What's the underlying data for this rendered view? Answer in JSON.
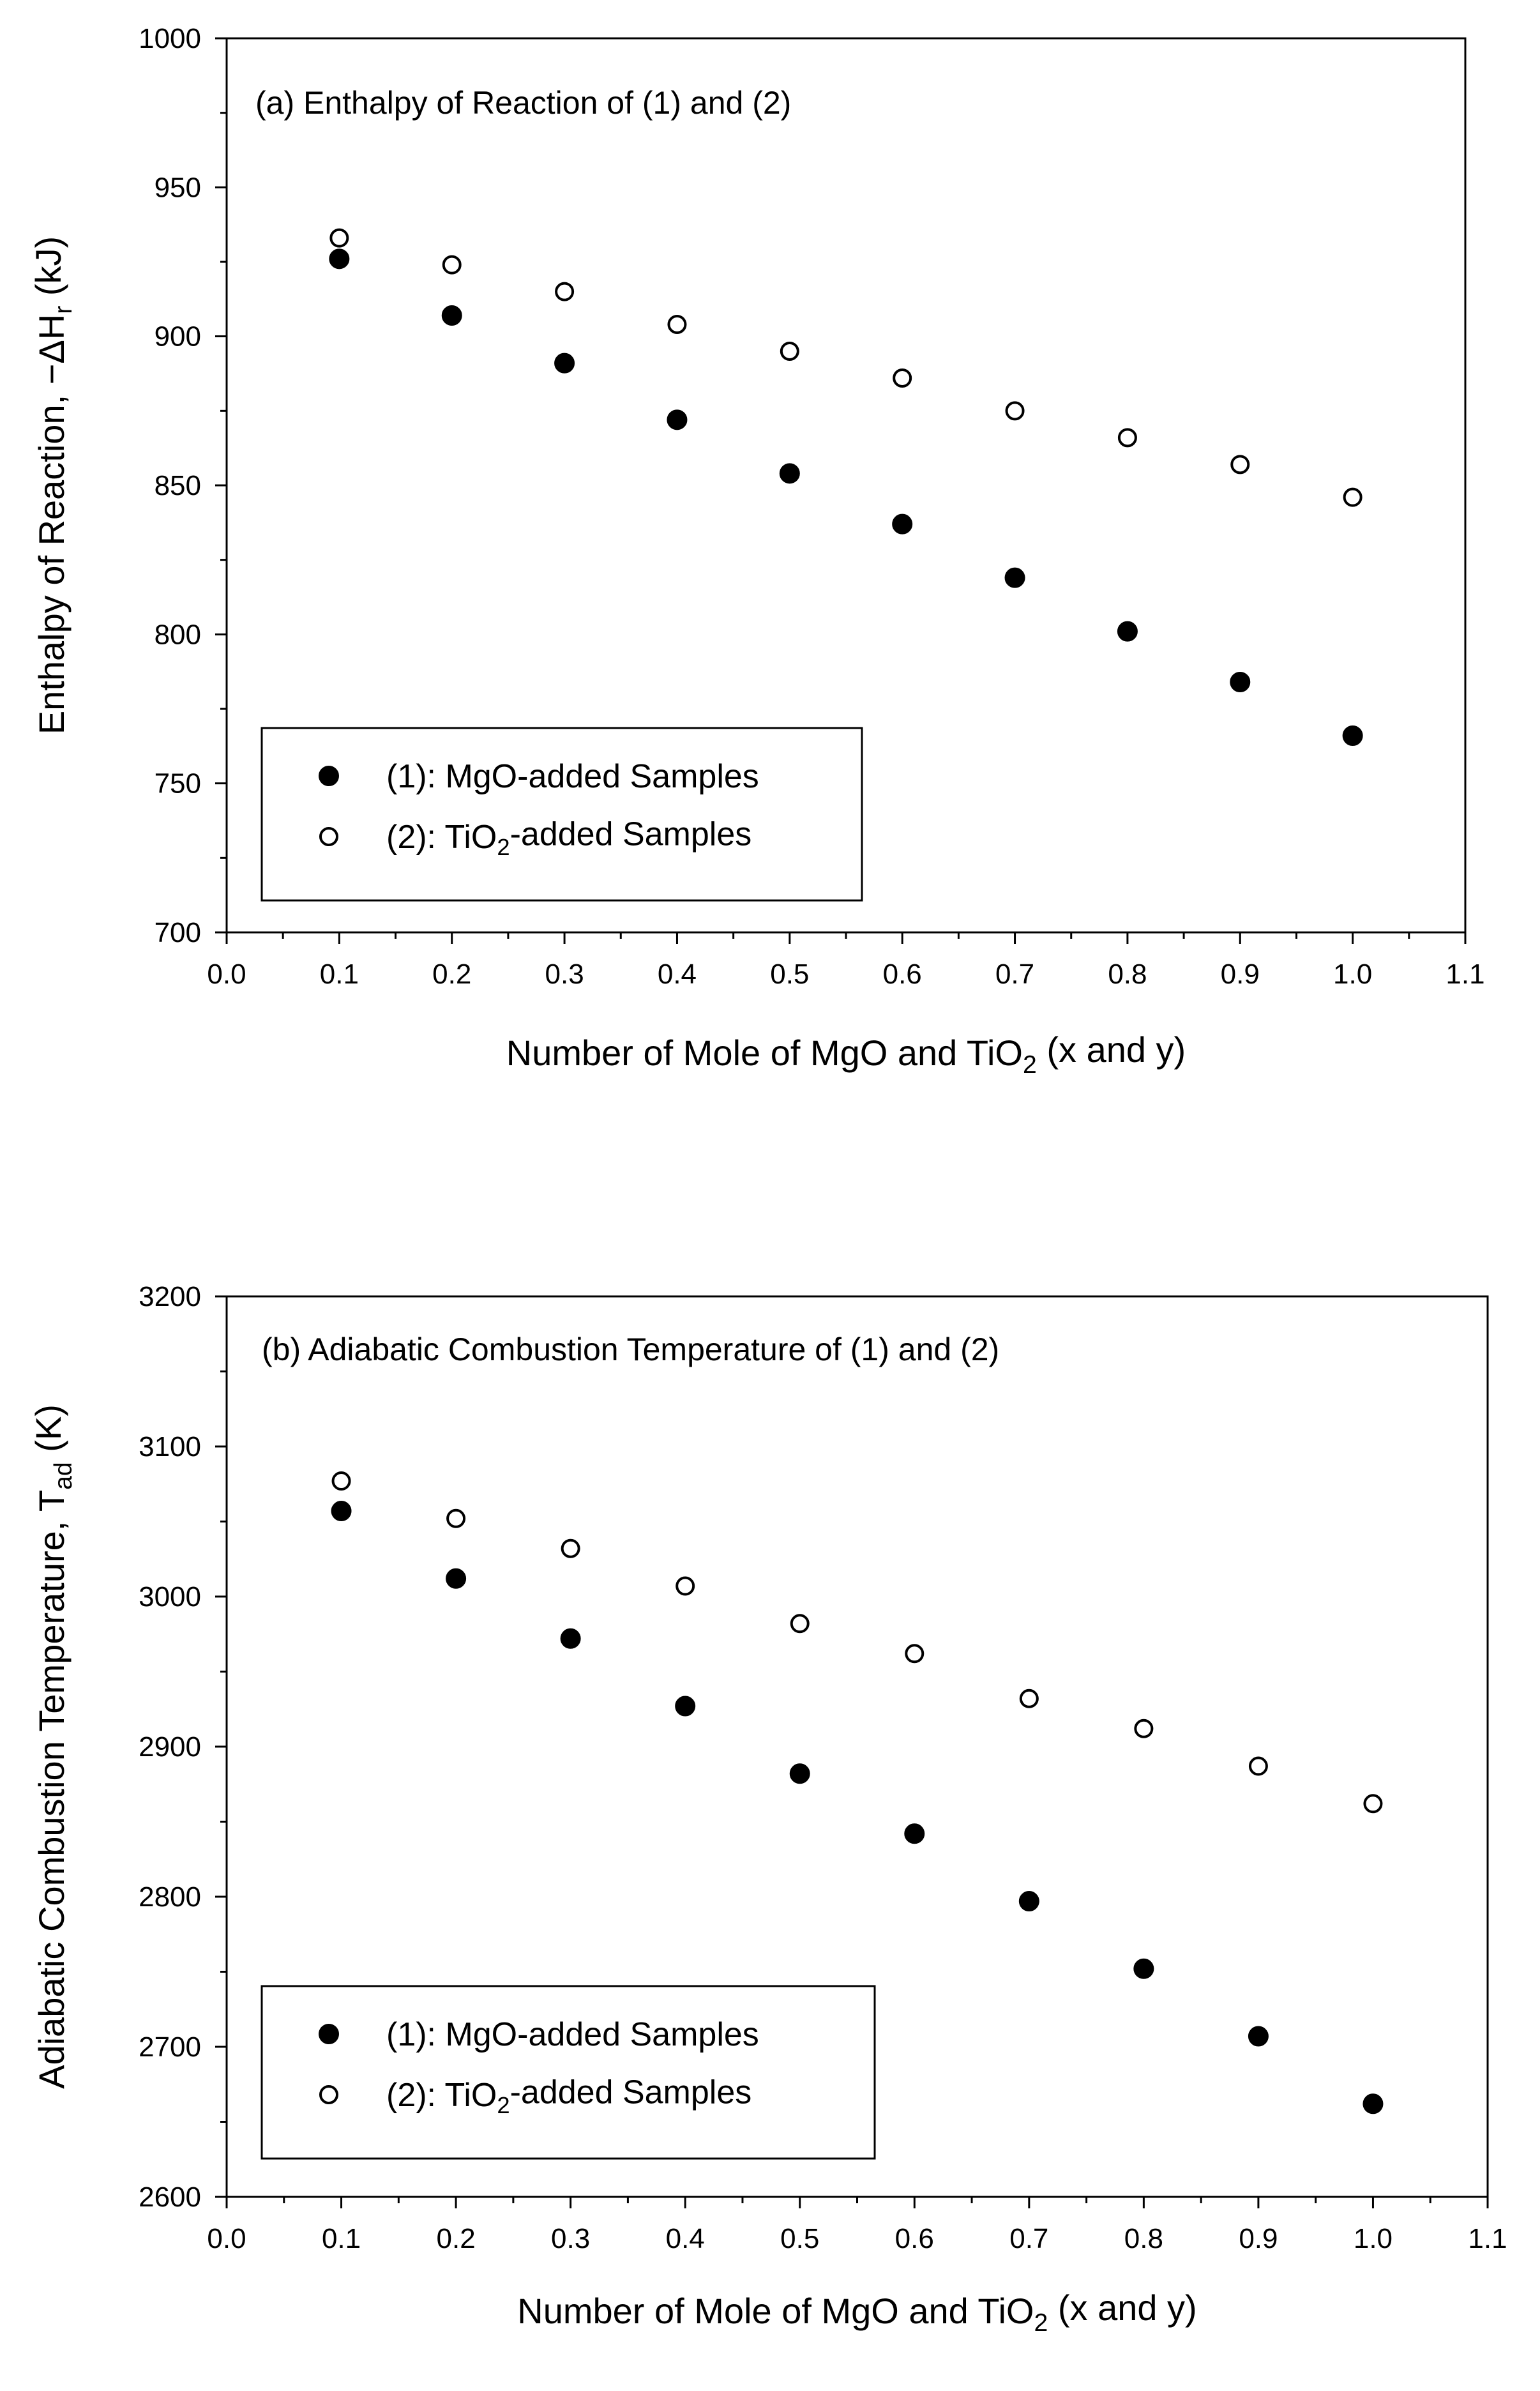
{
  "chart_data": [
    {
      "type": "scatter",
      "title": "(a) Enthalpy of Reaction of (1) and (2)",
      "xlabel": {
        "main": "Number of Mole of MgO and TiO",
        "sub": "2",
        "tail": " (x and y)"
      },
      "ylabel": {
        "main": "Enthalpy of Reaction, −ΔH",
        "sub": "r",
        "tail": " (kJ)"
      },
      "xlim": [
        0.0,
        1.1
      ],
      "ylim": [
        700,
        1000
      ],
      "xticks": [
        0.0,
        0.1,
        0.2,
        0.3,
        0.4,
        0.5,
        0.6,
        0.7,
        0.8,
        0.9,
        1.0,
        1.1
      ],
      "xtick_labels": [
        "0.0",
        "0.1",
        "0.2",
        "0.3",
        "0.4",
        "0.5",
        "0.6",
        "0.7",
        "0.8",
        "0.9",
        "1.0",
        "1.1"
      ],
      "yticks": [
        700,
        750,
        800,
        850,
        900,
        950,
        1000
      ],
      "ytick_labels": [
        "700",
        "750",
        "800",
        "850",
        "900",
        "950",
        "1000"
      ],
      "series": [
        {
          "name": "(1): MgO-added Samples",
          "label_main": "(1): MgO-added Samples",
          "label_sub": "",
          "label_tail": "",
          "marker": "filled-circle",
          "x": [
            0.1,
            0.2,
            0.3,
            0.4,
            0.5,
            0.6,
            0.7,
            0.8,
            0.9,
            1.0
          ],
          "y": [
            926,
            907,
            891,
            872,
            854,
            837,
            819,
            801,
            784,
            766
          ]
        },
        {
          "name": "(2): TiO2-added Samples",
          "label_main": "(2): TiO",
          "label_sub": "2",
          "label_tail": "-added Samples",
          "marker": "open-circle",
          "x": [
            0.1,
            0.2,
            0.3,
            0.4,
            0.5,
            0.6,
            0.7,
            0.8,
            0.9,
            1.0
          ],
          "y": [
            933,
            924,
            915,
            904,
            895,
            886,
            875,
            866,
            857,
            846
          ]
        }
      ],
      "legend_position": "bottom-left"
    },
    {
      "type": "scatter",
      "title": "(b) Adiabatic Combustion Temperature of (1) and (2)",
      "xlabel": {
        "main": "Number of Mole of MgO and TiO",
        "sub": "2",
        "tail": " (x and y)"
      },
      "ylabel": {
        "main": "Adiabatic Combustion Temperature, T",
        "sub": "ad",
        "tail": " (K)"
      },
      "xlim": [
        0.0,
        1.1
      ],
      "ylim": [
        2600,
        3200
      ],
      "xticks": [
        0.0,
        0.1,
        0.2,
        0.3,
        0.4,
        0.5,
        0.6,
        0.7,
        0.8,
        0.9,
        1.0,
        1.1
      ],
      "xtick_labels": [
        "0.0",
        "0.1",
        "0.2",
        "0.3",
        "0.4",
        "0.5",
        "0.6",
        "0.7",
        "0.8",
        "0.9",
        "1.0",
        "1.1"
      ],
      "yticks": [
        2600,
        2700,
        2800,
        2900,
        3000,
        3100,
        3200
      ],
      "ytick_labels": [
        "2600",
        "2700",
        "2800",
        "2900",
        "3000",
        "3100",
        "3200"
      ],
      "series": [
        {
          "name": "(1): MgO-added Samples",
          "label_main": "(1): MgO-added Samples",
          "label_sub": "",
          "label_tail": "",
          "marker": "filled-circle",
          "x": [
            0.1,
            0.2,
            0.3,
            0.4,
            0.5,
            0.6,
            0.7,
            0.8,
            0.9,
            1.0
          ],
          "y": [
            3057,
            3012,
            2972,
            2927,
            2882,
            2842,
            2797,
            2752,
            2707,
            2662
          ]
        },
        {
          "name": "(2): TiO2-added Samples",
          "label_main": "(2): TiO",
          "label_sub": "2",
          "label_tail": "-added Samples",
          "marker": "open-circle",
          "x": [
            0.1,
            0.2,
            0.3,
            0.4,
            0.5,
            0.6,
            0.7,
            0.8,
            0.9,
            1.0
          ],
          "y": [
            3077,
            3052,
            3032,
            3007,
            2982,
            2962,
            2932,
            2912,
            2887,
            2862
          ]
        }
      ],
      "legend_position": "bottom-left"
    }
  ]
}
